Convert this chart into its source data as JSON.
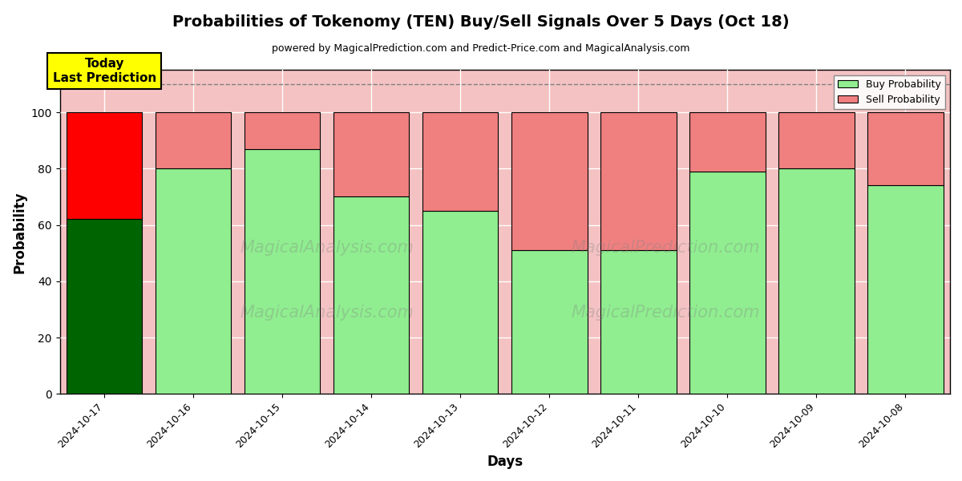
{
  "title": "Probabilities of Tokenomy (TEN) Buy/Sell Signals Over 5 Days (Oct 18)",
  "subtitle": "powered by MagicalPrediction.com and Predict-Price.com and MagicalAnalysis.com",
  "xlabel": "Days",
  "ylabel": "Probability",
  "dates": [
    "2024-10-17",
    "2024-10-16",
    "2024-10-15",
    "2024-10-14",
    "2024-10-13",
    "2024-10-12",
    "2024-10-11",
    "2024-10-10",
    "2024-10-09",
    "2024-10-08"
  ],
  "buy_values": [
    62,
    80,
    87,
    70,
    65,
    51,
    51,
    79,
    80,
    74
  ],
  "sell_values": [
    38,
    20,
    13,
    30,
    35,
    49,
    49,
    21,
    20,
    26
  ],
  "today_buy_color": "#006400",
  "today_sell_color": "#FF0000",
  "buy_color": "#90EE90",
  "sell_color": "#F08080",
  "today_annotation_bg": "#FFFF00",
  "today_annotation_text": "Today\nLast Prediction",
  "ylim": [
    0,
    115
  ],
  "dashed_line_y": 110,
  "watermark_left": "MagicalAnalysis.com",
  "watermark_right": "MagicalPrediction.com",
  "background_color": "#ffffff",
  "grid_color": "#ffffff",
  "plot_bg_color": "#F4C2C2"
}
